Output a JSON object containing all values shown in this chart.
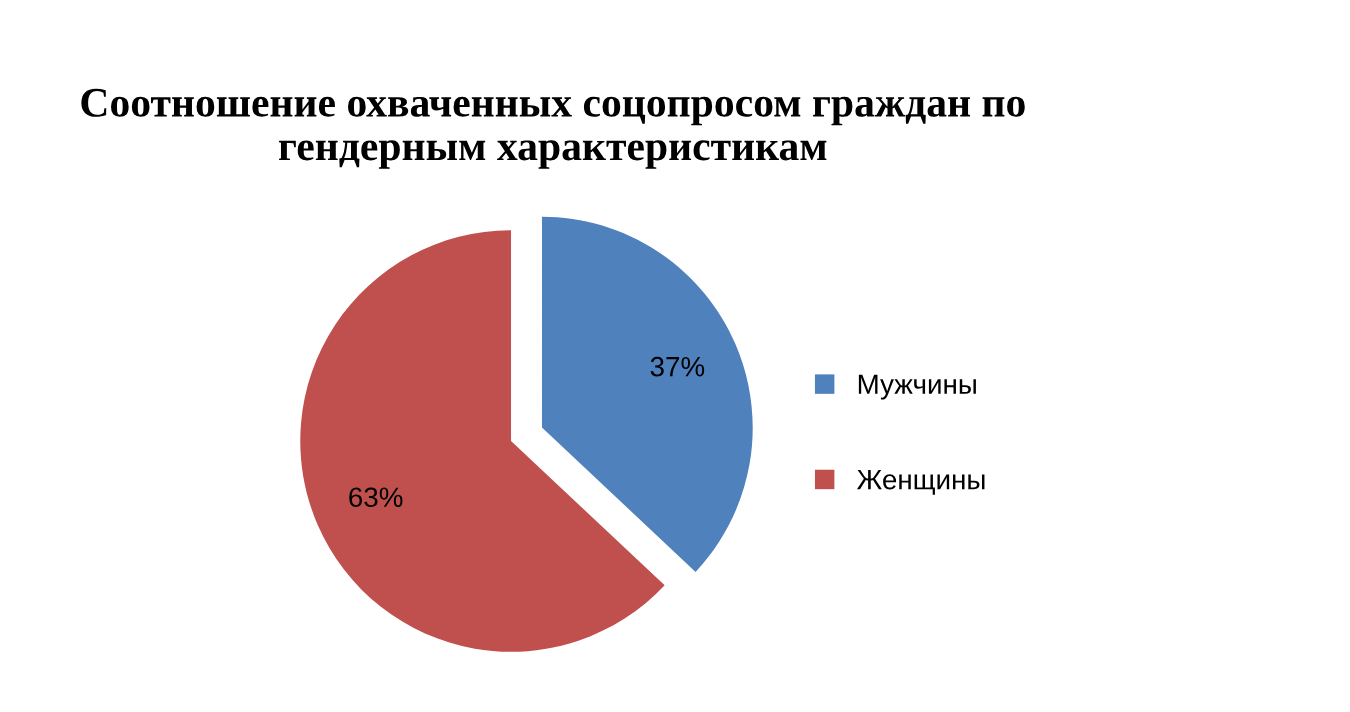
{
  "chart_data": {
    "type": "pie",
    "title": "Соотношение охваченных соцопросом граждан по гендерным характеристикам",
    "categories": [
      "Мужчины",
      "Женщины"
    ],
    "values": [
      37,
      63
    ],
    "value_labels": [
      "37%",
      "63%"
    ],
    "colors": [
      "#4f81bd",
      "#c0504d"
    ],
    "legend": "right"
  }
}
